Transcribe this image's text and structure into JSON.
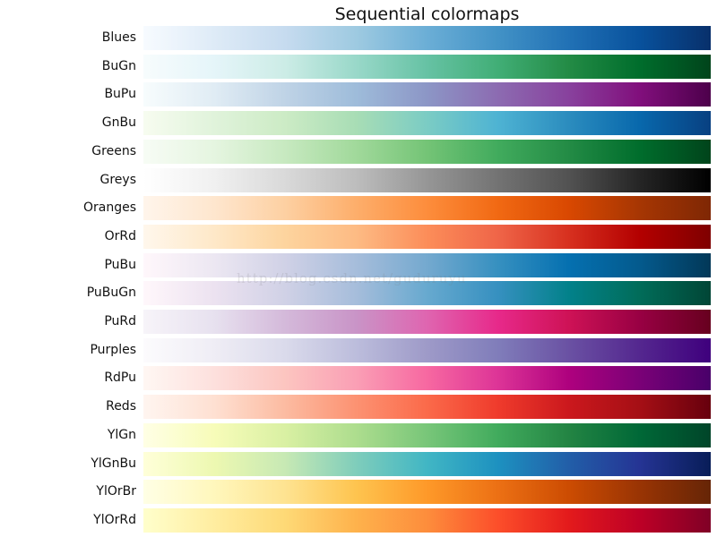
{
  "chart_data": {
    "type": "heatmap",
    "title": "Sequential colormaps",
    "colormaps": [
      {
        "name": "Blues",
        "colors": [
          "#f7fbff",
          "#deebf7",
          "#c6dbef",
          "#9ecae1",
          "#6baed6",
          "#4292c6",
          "#2171b5",
          "#08519c",
          "#08306b"
        ]
      },
      {
        "name": "BuGn",
        "colors": [
          "#f7fcfd",
          "#e5f5f9",
          "#ccece6",
          "#99d8c9",
          "#66c2a4",
          "#41ae76",
          "#238b45",
          "#006d2c",
          "#00441b"
        ]
      },
      {
        "name": "BuPu",
        "colors": [
          "#f7fcfd",
          "#e0ecf4",
          "#bfd3e6",
          "#9ebcda",
          "#8c96c6",
          "#8c6bb1",
          "#88419d",
          "#810f7c",
          "#4d004b"
        ]
      },
      {
        "name": "GnBu",
        "colors": [
          "#f7fcf0",
          "#e0f3db",
          "#ccebc5",
          "#a8ddb5",
          "#7bccc4",
          "#4eb3d3",
          "#2b8cbe",
          "#0868ac",
          "#084081"
        ]
      },
      {
        "name": "Greens",
        "colors": [
          "#f7fcf5",
          "#e5f5e0",
          "#c7e9c0",
          "#a1d99b",
          "#74c476",
          "#41ab5d",
          "#238b45",
          "#006d2c",
          "#00441b"
        ]
      },
      {
        "name": "Greys",
        "colors": [
          "#ffffff",
          "#f0f0f0",
          "#d9d9d9",
          "#bdbdbd",
          "#969696",
          "#737373",
          "#525252",
          "#252525",
          "#000000"
        ]
      },
      {
        "name": "Oranges",
        "colors": [
          "#fff5eb",
          "#fee6ce",
          "#fdd0a2",
          "#fdae6b",
          "#fd8d3c",
          "#f16913",
          "#d94801",
          "#a63603",
          "#7f2704"
        ]
      },
      {
        "name": "OrRd",
        "colors": [
          "#fff7ec",
          "#fee8c8",
          "#fdd49e",
          "#fdbb84",
          "#fc8d59",
          "#ef6548",
          "#d7301f",
          "#b30000",
          "#7f0000"
        ]
      },
      {
        "name": "PuBu",
        "colors": [
          "#fff7fb",
          "#ece7f2",
          "#d0d1e6",
          "#a6bddb",
          "#74a9cf",
          "#3690c0",
          "#0570b0",
          "#045a8d",
          "#023858"
        ]
      },
      {
        "name": "PuBuGn",
        "colors": [
          "#fff7fb",
          "#ece2f0",
          "#d0d1e6",
          "#a6bddb",
          "#67a9cf",
          "#3690c0",
          "#02818a",
          "#016c59",
          "#014636"
        ]
      },
      {
        "name": "PuRd",
        "colors": [
          "#f7f4f9",
          "#e7e1ef",
          "#d4b9da",
          "#c994c7",
          "#df65b0",
          "#e7298a",
          "#ce1256",
          "#980043",
          "#67001f"
        ]
      },
      {
        "name": "Purples",
        "colors": [
          "#fcfbfd",
          "#efedf5",
          "#dadaeb",
          "#bcbddc",
          "#9e9ac8",
          "#807dba",
          "#6a51a3",
          "#54278f",
          "#3f007d"
        ]
      },
      {
        "name": "RdPu",
        "colors": [
          "#fff7f3",
          "#fde0dd",
          "#fcc5c0",
          "#fa9fb5",
          "#f768a1",
          "#dd3497",
          "#ae017e",
          "#7a0177",
          "#49006a"
        ]
      },
      {
        "name": "Reds",
        "colors": [
          "#fff5f0",
          "#fee0d2",
          "#fcbba1",
          "#fc9272",
          "#fb6a4a",
          "#ef3b2c",
          "#cb181d",
          "#a50f15",
          "#67000d"
        ]
      },
      {
        "name": "YlGn",
        "colors": [
          "#ffffe5",
          "#f7fcb9",
          "#d9f0a3",
          "#addd8e",
          "#78c679",
          "#41ab5d",
          "#238443",
          "#006837",
          "#004529"
        ]
      },
      {
        "name": "YlGnBu",
        "colors": [
          "#ffffd9",
          "#edf8b1",
          "#c7e9b4",
          "#7fcdbb",
          "#41b6c4",
          "#1d91c0",
          "#225ea8",
          "#253494",
          "#081d58"
        ]
      },
      {
        "name": "YlOrBr",
        "colors": [
          "#ffffe5",
          "#fff7bc",
          "#fee391",
          "#fec44f",
          "#fe9929",
          "#ec7014",
          "#cc4c02",
          "#993404",
          "#662506"
        ]
      },
      {
        "name": "YlOrRd",
        "colors": [
          "#ffffcc",
          "#ffeda0",
          "#fed976",
          "#feb24c",
          "#fd8d3c",
          "#fc4e2a",
          "#e31a1c",
          "#bd0026",
          "#800026"
        ]
      }
    ]
  },
  "watermark": "http://blog.csdn.net/guduruyu"
}
